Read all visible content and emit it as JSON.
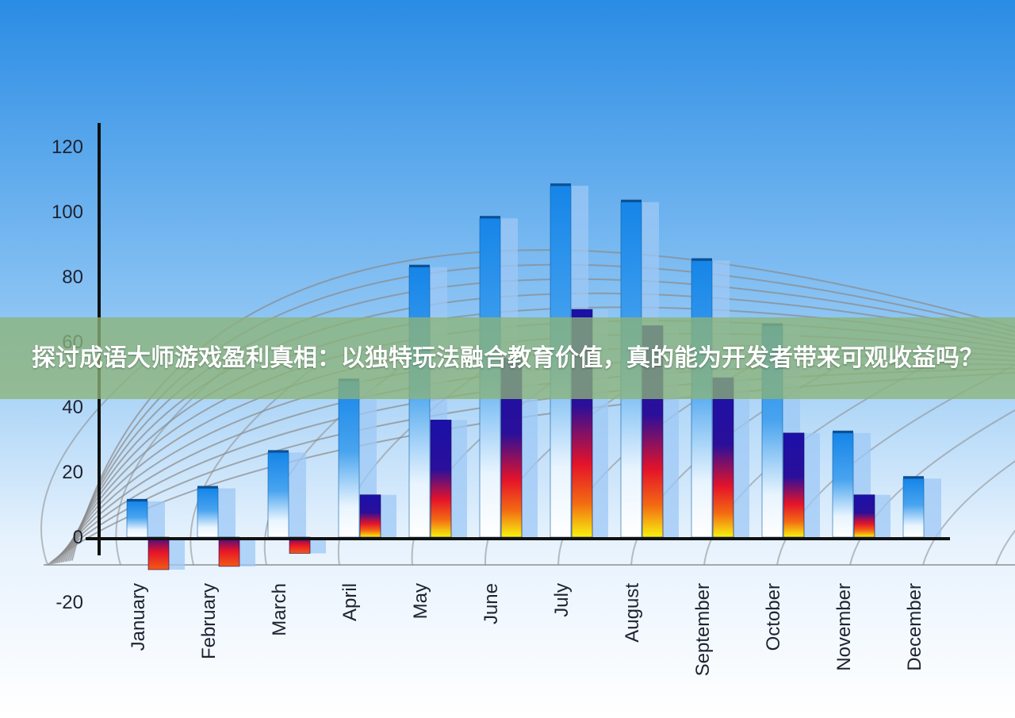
{
  "caption": {
    "text": "探讨成语大师游戏盈利真相：以独特玩法融合教育价值，真的能为开发者带来可观收益吗？"
  },
  "chart_data": {
    "type": "bar",
    "categories": [
      "January",
      "February",
      "March",
      "April",
      "May",
      "June",
      "July",
      "August",
      "September",
      "October",
      "November",
      "December"
    ],
    "series": [
      {
        "values": [
          11,
          15,
          26,
          48,
          83,
          98,
          108,
          103,
          85,
          65,
          32,
          18
        ]
      },
      {
        "values": [
          -10,
          -9,
          -5,
          13,
          36,
          55,
          70,
          65,
          49,
          32,
          13,
          null
        ]
      }
    ],
    "y_ticks": [
      120,
      100,
      80,
      60,
      40,
      20,
      0,
      -20
    ],
    "ylim": [
      -20,
      120
    ],
    "grid": true,
    "legend": "none",
    "colors": {
      "sky_top": "#2b8fe6",
      "sky_bottom": "#ffffff",
      "bar_blue_top": "#1a86e8",
      "bar_blue_bottom": "#ffffff",
      "bar_hot_top": "#1a12a8",
      "bar_hot_mid": "#e4132a",
      "bar_hot_bottom": "#f7f210",
      "bar_shadow": "#9ec8f5",
      "axis": "#111111",
      "grid": "#8a8a8a"
    }
  }
}
